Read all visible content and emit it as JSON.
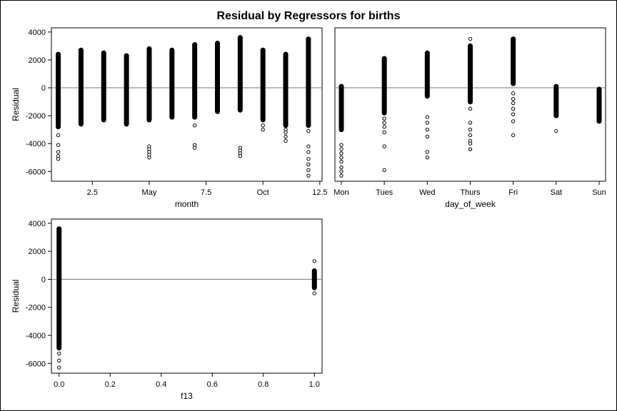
{
  "title": "Residual by Regressors for births",
  "chart_data": [
    {
      "type": "scatter",
      "xlabel": "month",
      "ylabel": "Residual",
      "xlim": [
        0.7,
        12.6
      ],
      "ylim": [
        -6700,
        4300
      ],
      "x_ticks": [
        {
          "v": 2.5,
          "label": "2.5"
        },
        {
          "v": 5,
          "label": "May"
        },
        {
          "v": 7.5,
          "label": "7.5"
        },
        {
          "v": 10,
          "label": "Oct"
        },
        {
          "v": 12.5,
          "label": "12.5"
        }
      ],
      "y_ticks": [
        4000,
        2000,
        0,
        -2000,
        -4000,
        -6000
      ],
      "reference_line": 0,
      "columns": [
        {
          "x": 1,
          "min": -2800,
          "max": 2400,
          "outliers": [
            -3400,
            -4100,
            -4600,
            -4900,
            -5100
          ]
        },
        {
          "x": 2,
          "min": -2600,
          "max": 2700,
          "outliers": []
        },
        {
          "x": 3,
          "min": -2300,
          "max": 2500,
          "outliers": []
        },
        {
          "x": 4,
          "min": -2600,
          "max": 2300,
          "outliers": []
        },
        {
          "x": 5,
          "min": -2300,
          "max": 2800,
          "outliers": [
            -4200,
            -4400,
            -4600,
            -4800,
            -5000
          ]
        },
        {
          "x": 6,
          "min": -2100,
          "max": 2700,
          "outliers": []
        },
        {
          "x": 7,
          "min": -2100,
          "max": 3100,
          "outliers": [
            -2700,
            -4100,
            -4300
          ]
        },
        {
          "x": 8,
          "min": -1700,
          "max": 3200,
          "outliers": []
        },
        {
          "x": 9,
          "min": -1600,
          "max": 3600,
          "outliers": [
            -4300,
            -4500,
            -4700,
            -4900
          ]
        },
        {
          "x": 10,
          "min": -2300,
          "max": 2700,
          "outliers": [
            -2700,
            -3000
          ]
        },
        {
          "x": 11,
          "min": -2700,
          "max": 2400,
          "outliers": [
            -3000,
            -3200,
            -3500,
            -3800
          ]
        },
        {
          "x": 12,
          "min": -2700,
          "max": 3500,
          "outliers": [
            -3100,
            -4200,
            -4600,
            -5100,
            -5500,
            -5900,
            -6300
          ]
        }
      ]
    },
    {
      "type": "scatter",
      "xlabel": "day_of_week",
      "ylabel": "",
      "categories": [
        "Mon",
        "Tues",
        "Wed",
        "Thurs",
        "Fri",
        "Sat",
        "Sun"
      ],
      "ylim": [
        -6700,
        4300
      ],
      "reference_line": 0,
      "columns": [
        {
          "x": "Mon",
          "min": -3000,
          "max": 100,
          "outliers": [
            -4100,
            -4400,
            -4700,
            -5000,
            -5300,
            -5700,
            -6000,
            -6300
          ]
        },
        {
          "x": "Tues",
          "min": -1800,
          "max": 2100,
          "outliers": [
            -2200,
            -2500,
            -2800,
            -3200,
            -4200,
            -5900
          ]
        },
        {
          "x": "Wed",
          "min": -600,
          "max": 2500,
          "outliers": [
            -2100,
            -2500,
            -3000,
            -3500,
            -4600,
            -5000
          ]
        },
        {
          "x": "Thurs",
          "min": -1000,
          "max": 3000,
          "outliers": [
            -1500,
            -2500,
            -3000,
            -3400,
            -3800,
            -4000,
            -4400,
            3500
          ]
        },
        {
          "x": "Fri",
          "min": 300,
          "max": 3500,
          "outliers": [
            -400,
            -800,
            -1100,
            -1500,
            -1900,
            -2400,
            -3400
          ]
        },
        {
          "x": "Sat",
          "min": -2000,
          "max": 100,
          "outliers": [
            -3100
          ]
        },
        {
          "x": "Sun",
          "min": -2400,
          "max": -100,
          "outliers": []
        }
      ]
    },
    {
      "type": "scatter",
      "xlabel": "f13",
      "ylabel": "Residual",
      "xlim": [
        -0.03,
        1.03
      ],
      "ylim": [
        -6700,
        4300
      ],
      "x_ticks": [
        {
          "v": 0,
          "label": "0.0"
        },
        {
          "v": 0.2,
          "label": "0.2"
        },
        {
          "v": 0.4,
          "label": "0.4"
        },
        {
          "v": 0.6,
          "label": "0.6"
        },
        {
          "v": 0.8,
          "label": "0.8"
        },
        {
          "v": 1,
          "label": "1.0"
        }
      ],
      "y_ticks": [
        4000,
        2000,
        0,
        -2000,
        -4000,
        -6000
      ],
      "reference_line": 0,
      "columns": [
        {
          "x": 0,
          "min": -4900,
          "max": 3600,
          "outliers": [
            -5300,
            -5800,
            -6300
          ]
        },
        {
          "x": 1,
          "min": -600,
          "max": 600,
          "outliers": [
            1300,
            -1000
          ]
        }
      ]
    }
  ]
}
